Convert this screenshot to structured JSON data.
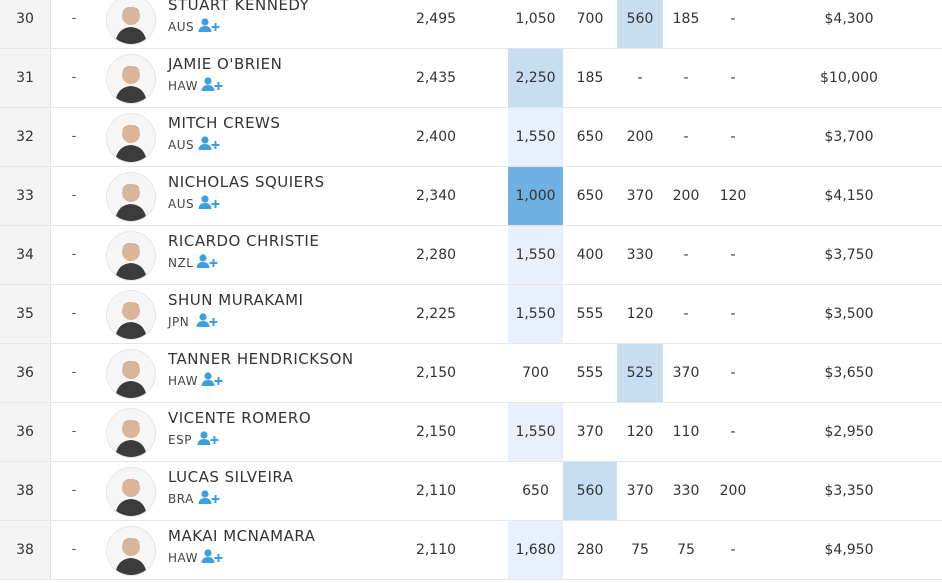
{
  "colors": {
    "highlight_light": "#e8f1fb",
    "highlight_mid": "#c6ddf2",
    "highlight_dark": "#6fb2e1",
    "follow_icon": "#3aa0e0"
  },
  "icons": {
    "follow": "add-user-icon",
    "avatar": "surfer-avatar-icon"
  },
  "rows": [
    {
      "rank": "30",
      "change": "-",
      "name": "STUART KENNEDY",
      "country": "AUS",
      "points": "2,495",
      "events": [
        "1,050",
        "700",
        "560",
        "185",
        "-"
      ],
      "highlights": [
        "",
        "",
        "mid",
        "",
        ""
      ],
      "prize": "$4,300"
    },
    {
      "rank": "31",
      "change": "-",
      "name": "JAMIE O'BRIEN",
      "country": "HAW",
      "points": "2,435",
      "events": [
        "2,250",
        "185",
        "-",
        "-",
        "-"
      ],
      "highlights": [
        "mid",
        "",
        "",
        "",
        ""
      ],
      "prize": "$10,000"
    },
    {
      "rank": "32",
      "change": "-",
      "name": "MITCH CREWS",
      "country": "AUS",
      "points": "2,400",
      "events": [
        "1,550",
        "650",
        "200",
        "-",
        "-"
      ],
      "highlights": [
        "light",
        "",
        "",
        "",
        ""
      ],
      "prize": "$3,700"
    },
    {
      "rank": "33",
      "change": "-",
      "name": "NICHOLAS SQUIERS",
      "country": "AUS",
      "points": "2,340",
      "events": [
        "1,000",
        "650",
        "370",
        "200",
        "120"
      ],
      "highlights": [
        "dark",
        "",
        "",
        "",
        ""
      ],
      "prize": "$4,150"
    },
    {
      "rank": "34",
      "change": "-",
      "name": "RICARDO CHRISTIE",
      "country": "NZL",
      "points": "2,280",
      "events": [
        "1,550",
        "400",
        "330",
        "-",
        "-"
      ],
      "highlights": [
        "light",
        "",
        "",
        "",
        ""
      ],
      "prize": "$3,750"
    },
    {
      "rank": "35",
      "change": "-",
      "name": "SHUN MURAKAMI",
      "country": "JPN",
      "points": "2,225",
      "events": [
        "1,550",
        "555",
        "120",
        "-",
        "-"
      ],
      "highlights": [
        "light",
        "",
        "",
        "",
        ""
      ],
      "prize": "$3,500"
    },
    {
      "rank": "36",
      "change": "-",
      "name": "TANNER HENDRICKSON",
      "country": "HAW",
      "points": "2,150",
      "events": [
        "700",
        "555",
        "525",
        "370",
        "-"
      ],
      "highlights": [
        "",
        "",
        "mid",
        "",
        ""
      ],
      "prize": "$3,650"
    },
    {
      "rank": "36",
      "change": "-",
      "name": "VICENTE ROMERO",
      "country": "ESP",
      "points": "2,150",
      "events": [
        "1,550",
        "370",
        "120",
        "110",
        "-"
      ],
      "highlights": [
        "light",
        "",
        "",
        "",
        ""
      ],
      "prize": "$2,950"
    },
    {
      "rank": "38",
      "change": "-",
      "name": "LUCAS SILVEIRA",
      "country": "BRA",
      "points": "2,110",
      "events": [
        "650",
        "560",
        "370",
        "330",
        "200"
      ],
      "highlights": [
        "",
        "mid",
        "",
        "",
        ""
      ],
      "prize": "$3,350"
    },
    {
      "rank": "38",
      "change": "-",
      "name": "MAKAI MCNAMARA",
      "country": "HAW",
      "points": "2,110",
      "events": [
        "1,680",
        "280",
        "75",
        "75",
        "-"
      ],
      "highlights": [
        "light",
        "",
        "",
        "",
        ""
      ],
      "prize": "$4,950"
    }
  ]
}
